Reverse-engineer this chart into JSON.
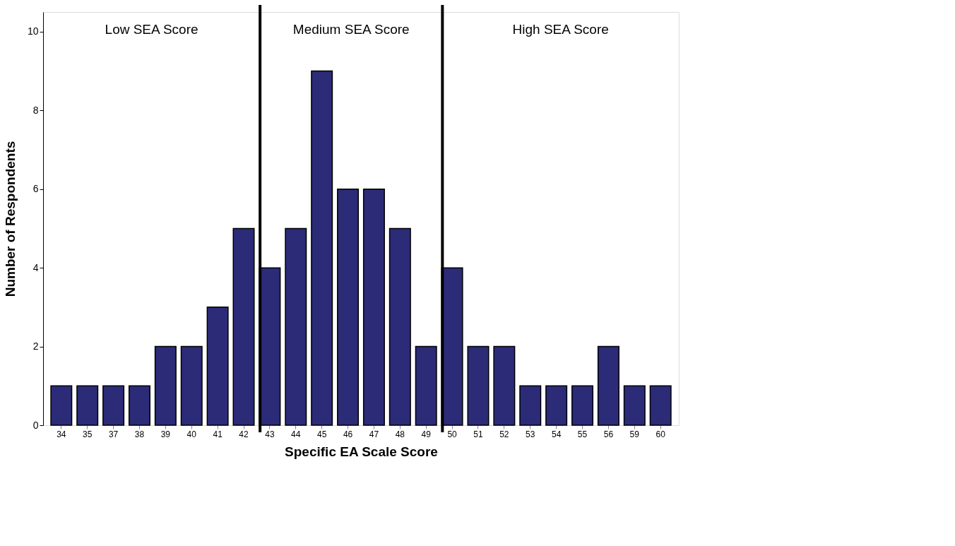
{
  "chart_data": {
    "type": "bar",
    "xlabel": "Specific EA Scale Score",
    "ylabel": "Number of Respondents",
    "categories": [
      "34",
      "35",
      "37",
      "38",
      "39",
      "40",
      "41",
      "42",
      "43",
      "44",
      "45",
      "46",
      "47",
      "48",
      "49",
      "50",
      "51",
      "52",
      "53",
      "54",
      "55",
      "56",
      "59",
      "60"
    ],
    "values": [
      1,
      1,
      1,
      1,
      2,
      2,
      3,
      5,
      4,
      5,
      9,
      6,
      6,
      5,
      2,
      4,
      2,
      2,
      1,
      1,
      1,
      2,
      1,
      1
    ],
    "color": "#2b2b78",
    "ylim": [
      0,
      10.5
    ],
    "yticks": [
      0,
      2,
      4,
      6,
      8,
      10
    ],
    "grid": false,
    "ref_lines": [
      {
        "axis": "x",
        "value": "43",
        "color": "#000000"
      },
      {
        "axis": "x",
        "value": "50",
        "color": "#000000"
      }
    ],
    "annotations": [
      "Low SEA Score",
      "Medium SEA Score",
      "High SEA Score"
    ]
  }
}
